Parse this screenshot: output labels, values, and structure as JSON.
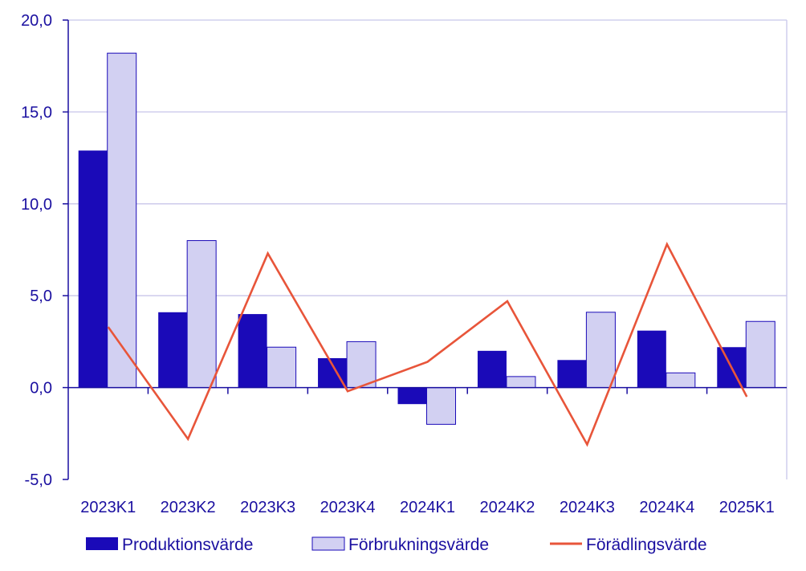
{
  "chart_data": {
    "type": "bar",
    "title": "",
    "xlabel": "",
    "ylabel": "",
    "categories": [
      "2023K1",
      "2023K2",
      "2023K3",
      "2023K4",
      "2024K1",
      "2024K2",
      "2024K3",
      "2024K4",
      "2025K1"
    ],
    "ylim": [
      -5,
      20
    ],
    "yticks": [
      -5,
      0,
      5,
      10,
      15,
      20
    ],
    "ytick_labels": [
      "-5,0",
      "0,0",
      "5,0",
      "10,0",
      "15,0",
      "20,0"
    ],
    "grid": true,
    "legend_position": "bottom",
    "series": [
      {
        "name": "Produktionsvärde",
        "kind": "bar",
        "color": "#1a0ab8",
        "values": [
          12.9,
          4.1,
          4.0,
          1.6,
          -0.9,
          2.0,
          1.5,
          3.1,
          2.2
        ]
      },
      {
        "name": "Förbrukningsvärde",
        "kind": "bar",
        "color": "#d2d0f2",
        "values": [
          18.2,
          8.0,
          2.2,
          2.5,
          -2.0,
          0.6,
          4.1,
          0.8,
          3.6
        ]
      },
      {
        "name": "Förädlingsvärde",
        "kind": "line",
        "color": "#e8553a",
        "values": [
          3.3,
          -2.8,
          7.3,
          -0.2,
          1.4,
          4.7,
          -3.1,
          7.8,
          -0.5
        ]
      }
    ]
  },
  "colors": {
    "axis": "#1a0fa0",
    "grid": "#c8c6ea",
    "frame": "#c8c6ea",
    "text": "#1a0fa0"
  }
}
